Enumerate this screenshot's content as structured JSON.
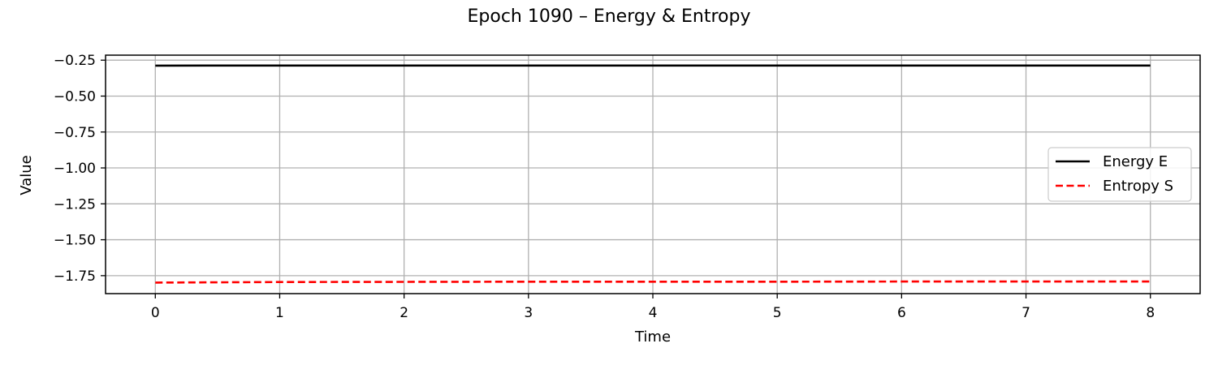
{
  "chart_data": {
    "type": "line",
    "title": "Epoch 1090 – Energy & Entropy",
    "xlabel": "Time",
    "ylabel": "Value",
    "xlim": [
      -0.4,
      8.4
    ],
    "ylim": [
      -1.875,
      -0.215
    ],
    "xticks": [
      0,
      1,
      2,
      3,
      4,
      5,
      6,
      7,
      8
    ],
    "xtick_labels": [
      "0",
      "1",
      "2",
      "3",
      "4",
      "5",
      "6",
      "7",
      "8"
    ],
    "yticks": [
      -1.75,
      -1.5,
      -1.25,
      -1.0,
      -0.75,
      -0.5,
      -0.25
    ],
    "ytick_labels": [
      "−1.75",
      "−1.50",
      "−1.25",
      "−1.00",
      "−0.75",
      "−0.50",
      "−0.25"
    ],
    "grid": true,
    "legend_position": "center-right",
    "x": [
      0,
      1,
      2,
      3,
      4,
      5,
      6,
      7,
      8
    ],
    "series": [
      {
        "name": "Energy E",
        "color": "#000000",
        "linestyle": "solid",
        "values": [
          -0.288,
          -0.287,
          -0.287,
          -0.287,
          -0.287,
          -0.287,
          -0.287,
          -0.287,
          -0.287
        ]
      },
      {
        "name": "Entropy S",
        "color": "#ff0000",
        "linestyle": "dashed",
        "values": [
          -1.798,
          -1.794,
          -1.793,
          -1.792,
          -1.792,
          -1.792,
          -1.791,
          -1.791,
          -1.791
        ]
      }
    ]
  }
}
